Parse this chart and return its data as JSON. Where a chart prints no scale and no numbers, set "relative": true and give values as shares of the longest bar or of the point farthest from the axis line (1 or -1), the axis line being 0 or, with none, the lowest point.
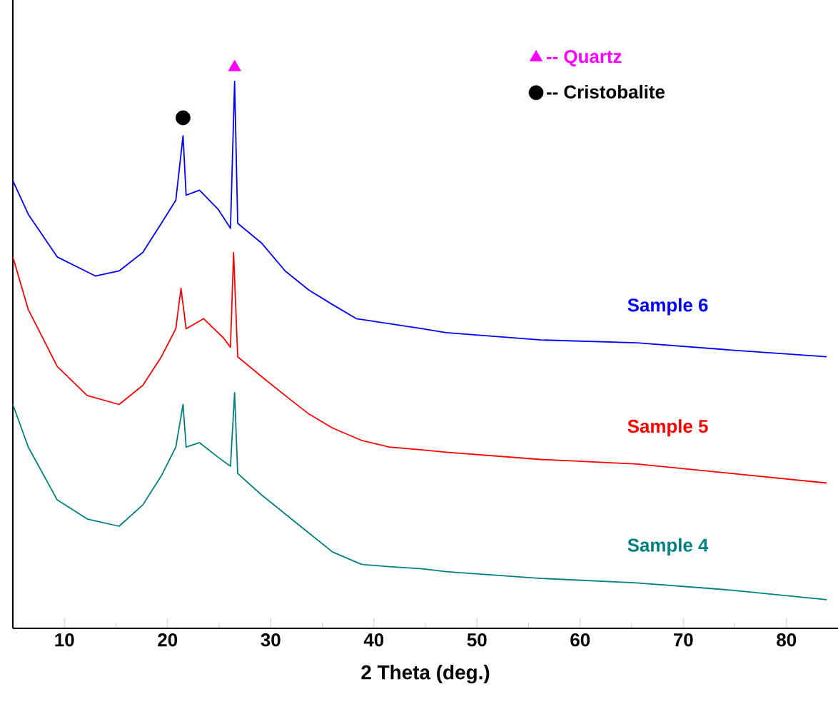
{
  "chart_data": {
    "type": "line",
    "xlabel": "2 Theta (deg.)",
    "relative": true,
    "xlim": [
      5,
      85
    ],
    "xticks": [
      10,
      20,
      30,
      40,
      50,
      60,
      70,
      80
    ],
    "legend": "top right",
    "marker": "none",
    "line_style": "solid",
    "series": [
      {
        "name": "Sample 6",
        "color": "#0000ff",
        "x": [
          5.0,
          6.5,
          9.3,
          13.0,
          15.3,
          17.6,
          19.4,
          20.8,
          21.5,
          21.8,
          23.1,
          24.9,
          26.1,
          26.5,
          26.8,
          29.1,
          31.4,
          33.7,
          36.0,
          38.3,
          41.5,
          44.7,
          47.0,
          56.2,
          65.5,
          74.7,
          83.9
        ],
        "values": [
          0.798,
          0.738,
          0.662,
          0.628,
          0.637,
          0.67,
          0.722,
          0.763,
          0.878,
          0.772,
          0.781,
          0.747,
          0.713,
          0.975,
          0.722,
          0.687,
          0.637,
          0.603,
          0.577,
          0.552,
          0.543,
          0.534,
          0.527,
          0.514,
          0.509,
          0.496,
          0.484
        ]
      },
      {
        "name": "Sample 5",
        "color": "#ff0000",
        "x": [
          5.0,
          6.5,
          9.3,
          12.2,
          15.3,
          17.6,
          19.4,
          20.8,
          21.3,
          21.8,
          23.5,
          25.4,
          26.1,
          26.4,
          26.8,
          29.1,
          31.4,
          33.7,
          36.0,
          38.8,
          41.5,
          44.7,
          47.0,
          56.2,
          65.5,
          74.7,
          83.9
        ],
        "values": [
          0.662,
          0.568,
          0.467,
          0.415,
          0.399,
          0.433,
          0.484,
          0.534,
          0.606,
          0.534,
          0.552,
          0.518,
          0.501,
          0.67,
          0.484,
          0.449,
          0.415,
          0.382,
          0.357,
          0.335,
          0.323,
          0.318,
          0.314,
          0.301,
          0.293,
          0.276,
          0.259
        ]
      },
      {
        "name": "Sample 4",
        "color": "#008080",
        "x": [
          5.0,
          6.5,
          9.3,
          12.2,
          15.3,
          17.6,
          19.4,
          20.8,
          21.5,
          21.8,
          23.1,
          24.9,
          26.1,
          26.5,
          26.8,
          29.1,
          31.4,
          33.7,
          36.0,
          38.8,
          41.5,
          44.7,
          47.0,
          56.2,
          65.5,
          74.7,
          83.9
        ],
        "values": [
          0.399,
          0.323,
          0.229,
          0.195,
          0.182,
          0.22,
          0.272,
          0.323,
          0.399,
          0.323,
          0.331,
          0.305,
          0.289,
          0.42,
          0.276,
          0.238,
          0.204,
          0.17,
          0.136,
          0.114,
          0.11,
          0.106,
          0.101,
          0.089,
          0.081,
          0.068,
          0.051
        ]
      },
      {
        "name": "-- Quartz",
        "type": "scatter",
        "marker": "triangle",
        "color": "#ff00ff",
        "x": [
          26.5
        ],
        "values": [
          1.0
        ]
      },
      {
        "name": "-- Cristobalite",
        "type": "scatter",
        "marker": "circle",
        "color": "#000000",
        "x": [
          21.5
        ],
        "values": [
          0.91
        ]
      }
    ]
  }
}
